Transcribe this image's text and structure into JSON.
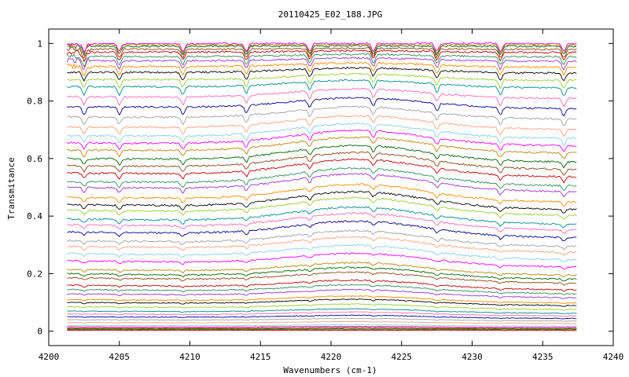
{
  "chart_data": {
    "type": "line",
    "title": "20110425_E02_188.JPG",
    "xlabel": "Wavenumbers (cm-1)",
    "ylabel": "Transmitance",
    "xlim": [
      4200,
      4240
    ],
    "ylim": [
      -0.05,
      1.05
    ],
    "x_range_data": [
      4201.3,
      4237.4
    ],
    "x_ticks": [
      "4200",
      "4205",
      "4210",
      "4215",
      "4220",
      "4225",
      "4230",
      "4235",
      "4240"
    ],
    "y_ticks": [
      "0",
      "0.2",
      "0.4",
      "0.6",
      "0.8",
      "1"
    ],
    "grid": false,
    "legend": "none",
    "absorption_lines_cm1": [
      4202.5,
      4205.0,
      4209.5,
      4214.0,
      4218.5,
      4223.0,
      4227.5,
      4232.0,
      4236.5
    ],
    "series_left_levels": [
      0.003,
      0.006,
      0.009,
      0.012,
      0.015,
      0.02,
      0.03,
      0.04,
      0.05,
      0.06,
      0.07,
      0.085,
      0.1,
      0.11,
      0.13,
      0.145,
      0.16,
      0.185,
      0.2,
      0.215,
      0.245,
      0.27,
      0.295,
      0.315,
      0.345,
      0.37,
      0.39,
      0.42,
      0.44,
      0.465,
      0.5,
      0.52,
      0.55,
      0.575,
      0.6,
      0.63,
      0.655,
      0.68,
      0.71,
      0.745,
      0.78,
      0.815,
      0.85,
      0.875,
      0.9,
      0.92,
      0.94,
      0.955,
      0.97,
      0.98,
      0.99,
      0.995,
      1.0
    ],
    "series_colors": [
      "#c00000",
      "#8b4513",
      "#006400",
      "#b8860b",
      "#ff00ff",
      "#87ceeb",
      "#ffa07a",
      "#a0a0a0",
      "#00008b",
      "#ff69b4",
      "#008b8b",
      "#9acd32",
      "#000000",
      "#ff8c00",
      "#9932cc",
      "#2e8b57"
    ]
  }
}
